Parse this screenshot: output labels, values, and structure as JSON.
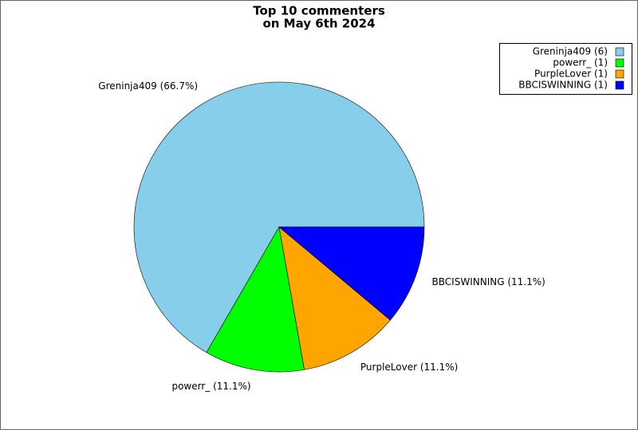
{
  "chart_data": {
    "type": "pie",
    "title": [
      "Top 10 commenters",
      "on May 6th 2024"
    ],
    "values": [
      6,
      1,
      1,
      1
    ],
    "value_labels": [
      "Greninja409 (66.7%)",
      "powerr_ (11.1%)",
      "PurpleLover (11.1%)",
      "BBCISWINNING (11.1%)"
    ],
    "legend": [
      "Greninja409 (6)",
      "powerr_ (1)",
      "PurpleLover (1)",
      "BBCISWINNING (1)"
    ],
    "colors": [
      "#87ceeb",
      "#00ff00",
      "#ffa500",
      "#0000ff"
    ],
    "legend_position": "upper right"
  }
}
